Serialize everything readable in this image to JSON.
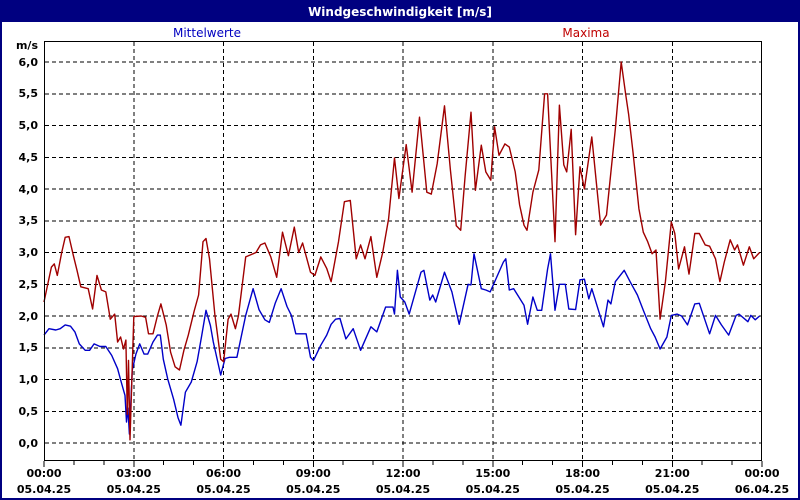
{
  "window": {
    "title": "Windgeschwindigkeit [m/s]",
    "titlebar_bg": "#000080",
    "titlebar_text_color": "#FFFFFF",
    "border_color": "#000080"
  },
  "legend": {
    "mean_label": "Mittelwerte",
    "mean_color": "#0000C0",
    "max_label": "Maxima",
    "max_color": "#C00000"
  },
  "axis": {
    "unit_label": "m/s",
    "tick_label_color": "#000000"
  },
  "chart_data": {
    "type": "line",
    "title": "Windgeschwindigkeit [m/s]",
    "ylabel": "m/s",
    "xlabel": "",
    "ylim": [
      0,
      6.33
    ],
    "xlim_hours": [
      0,
      24
    ],
    "grid": "dashed",
    "y_ticks": [
      {
        "value": 0.0,
        "label": "0,0"
      },
      {
        "value": 0.5,
        "label": "0,5"
      },
      {
        "value": 1.0,
        "label": "1,0"
      },
      {
        "value": 1.5,
        "label": "1,5"
      },
      {
        "value": 2.0,
        "label": "2,0"
      },
      {
        "value": 2.5,
        "label": "2,5"
      },
      {
        "value": 3.0,
        "label": "3,0"
      },
      {
        "value": 3.5,
        "label": "3,5"
      },
      {
        "value": 4.0,
        "label": "4,0"
      },
      {
        "value": 4.5,
        "label": "4,5"
      },
      {
        "value": 5.0,
        "label": "5,0"
      },
      {
        "value": 5.5,
        "label": "5,5"
      },
      {
        "value": 6.0,
        "label": "6,0"
      }
    ],
    "x_ticks_major": [
      {
        "hour": 0,
        "time": "00:00",
        "date": "05.04.25"
      },
      {
        "hour": 3,
        "time": "03:00",
        "date": "05.04.25"
      },
      {
        "hour": 6,
        "time": "06:00",
        "date": "05.04.25"
      },
      {
        "hour": 9,
        "time": "09:00",
        "date": "05.04.25"
      },
      {
        "hour": 12,
        "time": "12:00",
        "date": "05.04.25"
      },
      {
        "hour": 15,
        "time": "15:00",
        "date": "05.04.25"
      },
      {
        "hour": 18,
        "time": "18:00",
        "date": "05.04.25"
      },
      {
        "hour": 21,
        "time": "21:00",
        "date": "05.04.25"
      },
      {
        "hour": 24,
        "time": "00:00",
        "date": "06.04.25"
      }
    ],
    "x_minor_tick_every_hours": 1,
    "series": [
      {
        "name": "Mittelwerte",
        "color": "#0000C8",
        "points": [
          [
            0.0,
            1.7
          ],
          [
            0.17,
            1.8
          ],
          [
            0.4,
            1.78
          ],
          [
            0.55,
            1.8
          ],
          [
            0.72,
            1.86
          ],
          [
            0.9,
            1.84
          ],
          [
            1.05,
            1.75
          ],
          [
            1.2,
            1.56
          ],
          [
            1.4,
            1.46
          ],
          [
            1.55,
            1.46
          ],
          [
            1.7,
            1.56
          ],
          [
            1.9,
            1.52
          ],
          [
            2.1,
            1.52
          ],
          [
            2.3,
            1.38
          ],
          [
            2.5,
            1.17
          ],
          [
            2.62,
            0.96
          ],
          [
            2.75,
            0.75
          ],
          [
            2.8,
            0.33
          ],
          [
            2.85,
            0.55
          ],
          [
            2.9,
            0.14
          ],
          [
            3.0,
            1.15
          ],
          [
            3.12,
            1.4
          ],
          [
            3.25,
            1.56
          ],
          [
            3.4,
            1.4
          ],
          [
            3.52,
            1.4
          ],
          [
            3.7,
            1.59
          ],
          [
            3.85,
            1.7
          ],
          [
            3.95,
            1.7
          ],
          [
            4.05,
            1.32
          ],
          [
            4.2,
            1.01
          ],
          [
            4.4,
            0.69
          ],
          [
            4.55,
            0.4
          ],
          [
            4.65,
            0.28
          ],
          [
            4.8,
            0.8
          ],
          [
            5.0,
            0.96
          ],
          [
            5.2,
            1.28
          ],
          [
            5.35,
            1.68
          ],
          [
            5.5,
            2.09
          ],
          [
            5.65,
            1.85
          ],
          [
            5.75,
            1.59
          ],
          [
            6.0,
            1.07
          ],
          [
            6.15,
            1.33
          ],
          [
            6.3,
            1.35
          ],
          [
            6.55,
            1.35
          ],
          [
            6.85,
            2.01
          ],
          [
            7.1,
            2.43
          ],
          [
            7.3,
            2.1
          ],
          [
            7.5,
            1.94
          ],
          [
            7.65,
            1.9
          ],
          [
            7.85,
            2.2
          ],
          [
            8.05,
            2.43
          ],
          [
            8.25,
            2.15
          ],
          [
            8.4,
            2.01
          ],
          [
            8.55,
            1.72
          ],
          [
            8.9,
            1.72
          ],
          [
            9.05,
            1.35
          ],
          [
            9.15,
            1.3
          ],
          [
            9.4,
            1.54
          ],
          [
            9.6,
            1.7
          ],
          [
            9.75,
            1.87
          ],
          [
            9.9,
            1.95
          ],
          [
            10.05,
            1.96
          ],
          [
            10.25,
            1.64
          ],
          [
            10.5,
            1.8
          ],
          [
            10.75,
            1.46
          ],
          [
            11.1,
            1.83
          ],
          [
            11.3,
            1.75
          ],
          [
            11.6,
            2.14
          ],
          [
            11.85,
            2.14
          ],
          [
            11.9,
            2.03
          ],
          [
            12.0,
            2.72
          ],
          [
            12.1,
            2.3
          ],
          [
            12.25,
            2.22
          ],
          [
            12.4,
            2.03
          ],
          [
            12.8,
            2.69
          ],
          [
            12.9,
            2.72
          ],
          [
            13.1,
            2.25
          ],
          [
            13.2,
            2.33
          ],
          [
            13.3,
            2.22
          ],
          [
            13.6,
            2.69
          ],
          [
            13.85,
            2.38
          ],
          [
            14.1,
            1.87
          ],
          [
            14.4,
            2.5
          ],
          [
            14.5,
            2.49
          ],
          [
            14.6,
            2.98
          ],
          [
            14.85,
            2.43
          ],
          [
            15.0,
            2.41
          ],
          [
            15.15,
            2.38
          ],
          [
            15.4,
            2.64
          ],
          [
            15.6,
            2.85
          ],
          [
            15.68,
            2.9
          ],
          [
            15.8,
            2.41
          ],
          [
            15.95,
            2.43
          ],
          [
            16.3,
            2.17
          ],
          [
            16.42,
            1.87
          ],
          [
            16.6,
            2.3
          ],
          [
            16.75,
            2.09
          ],
          [
            16.9,
            2.09
          ],
          [
            17.1,
            2.74
          ],
          [
            17.2,
            2.98
          ],
          [
            17.35,
            2.09
          ],
          [
            17.5,
            2.5
          ],
          [
            17.7,
            2.5
          ],
          [
            17.82,
            2.11
          ],
          [
            18.05,
            2.1
          ],
          [
            18.2,
            2.57
          ],
          [
            18.35,
            2.58
          ],
          [
            18.5,
            2.27
          ],
          [
            18.6,
            2.43
          ],
          [
            18.72,
            2.25
          ],
          [
            19.0,
            1.83
          ],
          [
            19.15,
            2.25
          ],
          [
            19.25,
            2.19
          ],
          [
            19.4,
            2.54
          ],
          [
            19.7,
            2.72
          ],
          [
            19.9,
            2.54
          ],
          [
            20.15,
            2.33
          ],
          [
            20.35,
            2.09
          ],
          [
            20.6,
            1.8
          ],
          [
            20.75,
            1.67
          ],
          [
            20.92,
            1.48
          ],
          [
            21.15,
            1.67
          ],
          [
            21.3,
            2.01
          ],
          [
            21.5,
            2.03
          ],
          [
            21.65,
            2.0
          ],
          [
            21.85,
            1.86
          ],
          [
            22.1,
            2.19
          ],
          [
            22.25,
            2.2
          ],
          [
            22.6,
            1.72
          ],
          [
            22.8,
            2.01
          ],
          [
            23.0,
            1.86
          ],
          [
            23.25,
            1.7
          ],
          [
            23.5,
            2.01
          ],
          [
            23.6,
            2.03
          ],
          [
            23.9,
            1.91
          ],
          [
            24.0,
            2.01
          ],
          [
            24.15,
            1.94
          ],
          [
            24.3,
            2.0
          ]
        ]
      },
      {
        "name": "Maxima",
        "color": "#A00000",
        "points": [
          [
            0.0,
            2.22
          ],
          [
            0.15,
            2.55
          ],
          [
            0.25,
            2.77
          ],
          [
            0.35,
            2.82
          ],
          [
            0.45,
            2.64
          ],
          [
            0.6,
            3.0
          ],
          [
            0.72,
            3.24
          ],
          [
            0.85,
            3.25
          ],
          [
            1.0,
            2.95
          ],
          [
            1.12,
            2.72
          ],
          [
            1.25,
            2.46
          ],
          [
            1.5,
            2.43
          ],
          [
            1.65,
            2.11
          ],
          [
            1.8,
            2.64
          ],
          [
            1.95,
            2.41
          ],
          [
            2.1,
            2.38
          ],
          [
            2.25,
            1.95
          ],
          [
            2.4,
            2.03
          ],
          [
            2.5,
            1.59
          ],
          [
            2.6,
            1.67
          ],
          [
            2.7,
            1.48
          ],
          [
            2.78,
            1.62
          ],
          [
            2.83,
            0.45
          ],
          [
            2.87,
            1.3
          ],
          [
            2.92,
            0.05
          ],
          [
            3.05,
            1.99
          ],
          [
            3.3,
            2.0
          ],
          [
            3.45,
            1.98
          ],
          [
            3.55,
            1.72
          ],
          [
            3.7,
            1.72
          ],
          [
            3.85,
            2.0
          ],
          [
            3.97,
            2.19
          ],
          [
            4.15,
            1.86
          ],
          [
            4.3,
            1.43
          ],
          [
            4.45,
            1.2
          ],
          [
            4.6,
            1.15
          ],
          [
            4.75,
            1.46
          ],
          [
            4.9,
            1.7
          ],
          [
            5.1,
            2.08
          ],
          [
            5.25,
            2.33
          ],
          [
            5.4,
            3.17
          ],
          [
            5.5,
            3.22
          ],
          [
            5.62,
            2.9
          ],
          [
            5.8,
            2.03
          ],
          [
            6.0,
            1.32
          ],
          [
            6.1,
            1.28
          ],
          [
            6.25,
            1.95
          ],
          [
            6.35,
            2.03
          ],
          [
            6.5,
            1.8
          ],
          [
            6.6,
            2.0
          ],
          [
            6.85,
            2.93
          ],
          [
            7.0,
            2.96
          ],
          [
            7.2,
            3.0
          ],
          [
            7.35,
            3.12
          ],
          [
            7.5,
            3.15
          ],
          [
            7.7,
            2.93
          ],
          [
            7.9,
            2.61
          ],
          [
            8.1,
            3.32
          ],
          [
            8.3,
            2.95
          ],
          [
            8.5,
            3.4
          ],
          [
            8.65,
            3.0
          ],
          [
            8.78,
            3.15
          ],
          [
            9.05,
            2.69
          ],
          [
            9.2,
            2.64
          ],
          [
            9.4,
            2.93
          ],
          [
            9.6,
            2.75
          ],
          [
            9.75,
            2.54
          ],
          [
            10.0,
            3.17
          ],
          [
            10.2,
            3.8
          ],
          [
            10.4,
            3.82
          ],
          [
            10.6,
            2.9
          ],
          [
            10.75,
            3.12
          ],
          [
            10.9,
            2.9
          ],
          [
            11.1,
            3.25
          ],
          [
            11.3,
            2.61
          ],
          [
            11.5,
            3.0
          ],
          [
            11.7,
            3.53
          ],
          [
            11.9,
            4.49
          ],
          [
            12.05,
            3.85
          ],
          [
            12.3,
            4.7
          ],
          [
            12.5,
            3.95
          ],
          [
            12.75,
            5.13
          ],
          [
            13.0,
            3.95
          ],
          [
            13.15,
            3.92
          ],
          [
            13.35,
            4.4
          ],
          [
            13.6,
            5.31
          ],
          [
            13.8,
            4.3
          ],
          [
            14.0,
            3.42
          ],
          [
            14.15,
            3.35
          ],
          [
            14.3,
            4.2
          ],
          [
            14.5,
            5.21
          ],
          [
            14.65,
            3.98
          ],
          [
            14.85,
            4.69
          ],
          [
            15.0,
            4.27
          ],
          [
            15.17,
            4.14
          ],
          [
            15.3,
            4.98
          ],
          [
            15.45,
            4.53
          ],
          [
            15.65,
            4.71
          ],
          [
            15.8,
            4.66
          ],
          [
            16.0,
            4.27
          ],
          [
            16.15,
            3.75
          ],
          [
            16.3,
            3.43
          ],
          [
            16.4,
            3.35
          ],
          [
            16.6,
            3.95
          ],
          [
            16.8,
            4.3
          ],
          [
            17.0,
            5.5
          ],
          [
            17.1,
            5.5
          ],
          [
            17.35,
            3.17
          ],
          [
            17.5,
            5.32
          ],
          [
            17.65,
            4.38
          ],
          [
            17.75,
            4.27
          ],
          [
            17.9,
            4.94
          ],
          [
            18.05,
            3.28
          ],
          [
            18.2,
            4.35
          ],
          [
            18.35,
            4.0
          ],
          [
            18.6,
            4.82
          ],
          [
            18.9,
            3.43
          ],
          [
            19.1,
            3.59
          ],
          [
            19.4,
            4.94
          ],
          [
            19.6,
            6.0
          ],
          [
            19.75,
            5.5
          ],
          [
            19.85,
            5.18
          ],
          [
            20.0,
            4.58
          ],
          [
            20.2,
            3.69
          ],
          [
            20.35,
            3.32
          ],
          [
            20.5,
            3.17
          ],
          [
            20.65,
            2.98
          ],
          [
            20.78,
            3.04
          ],
          [
            20.92,
            1.95
          ],
          [
            21.1,
            2.54
          ],
          [
            21.3,
            3.48
          ],
          [
            21.42,
            3.3
          ],
          [
            21.55,
            2.74
          ],
          [
            21.75,
            3.09
          ],
          [
            21.9,
            2.66
          ],
          [
            22.1,
            3.3
          ],
          [
            22.25,
            3.3
          ],
          [
            22.45,
            3.12
          ],
          [
            22.6,
            3.1
          ],
          [
            22.8,
            2.9
          ],
          [
            22.95,
            2.54
          ],
          [
            23.1,
            2.85
          ],
          [
            23.3,
            3.2
          ],
          [
            23.45,
            3.04
          ],
          [
            23.55,
            3.12
          ],
          [
            23.75,
            2.8
          ],
          [
            23.95,
            3.09
          ],
          [
            24.1,
            2.9
          ],
          [
            24.3,
            3.0
          ]
        ]
      }
    ]
  }
}
